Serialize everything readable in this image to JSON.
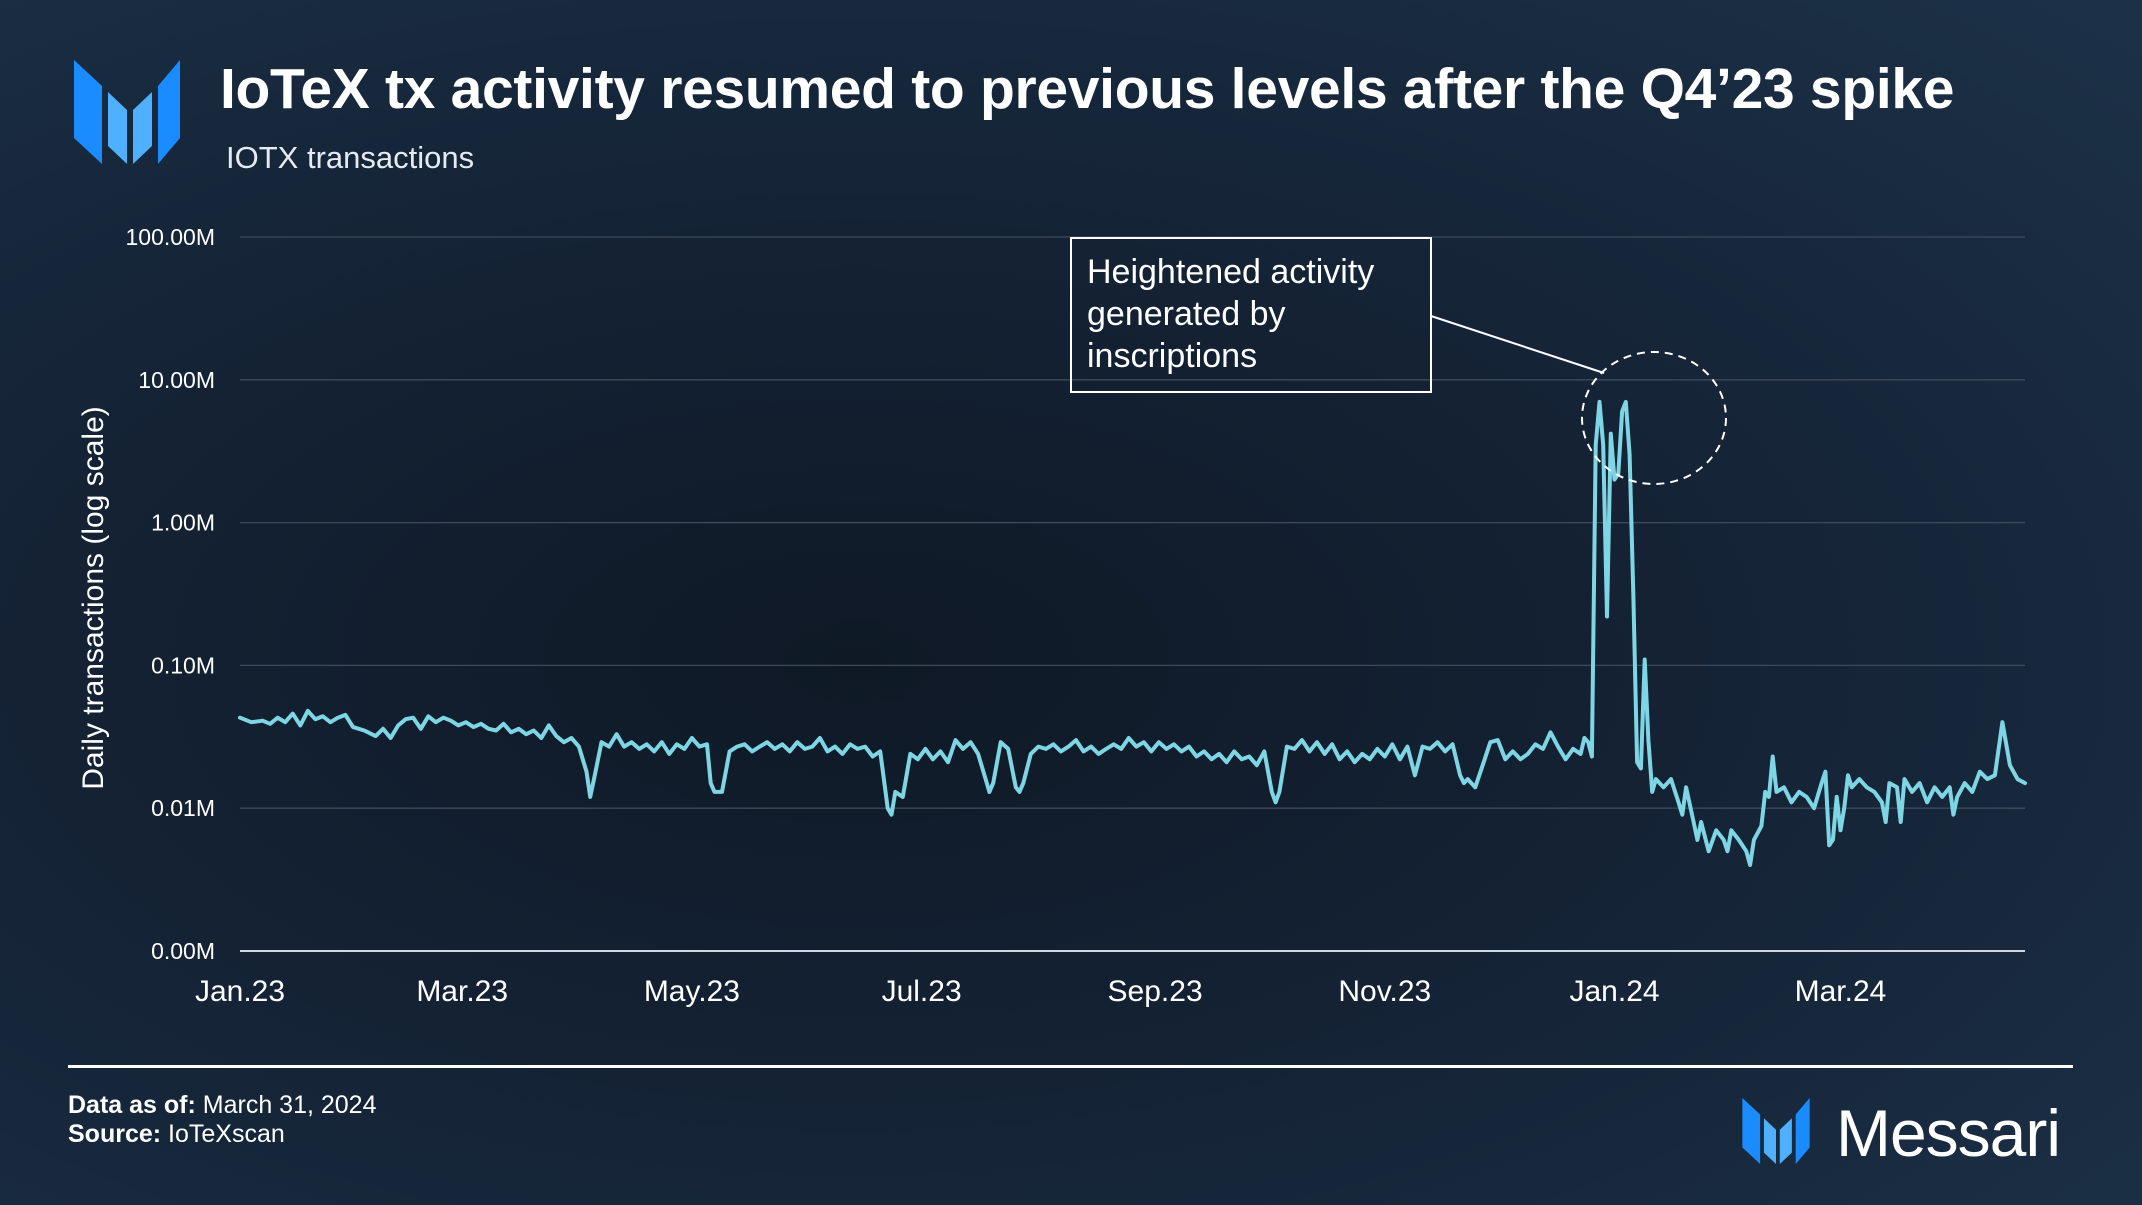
{
  "header": {
    "title": "IoTeX tx activity resumed to previous levels after the Q4’23 spike",
    "subtitle": "IOTX transactions"
  },
  "footer": {
    "data_as_of_label": "Data as of:",
    "data_as_of_value": "March 31, 2024",
    "source_label": "Source:",
    "source_value": "IoTeXscan",
    "brand": "Messari"
  },
  "colors": {
    "line": "#7ed6e4",
    "accent_blue": "#1a8cff",
    "grid": "#3d4a5a"
  },
  "chart_data": {
    "type": "line",
    "title": "IoTeX tx activity resumed to previous levels after the Q4’23 spike",
    "subtitle": "IOTX transactions",
    "ylabel": "Daily transactions (log scale)",
    "xlabel": "",
    "yscale": "log",
    "ylim": [
      0.001,
      100
    ],
    "y_ticks": [
      {
        "value": 100,
        "label": "100.00M"
      },
      {
        "value": 10,
        "label": "10.00M"
      },
      {
        "value": 1,
        "label": "1.00M"
      },
      {
        "value": 0.1,
        "label": "0.10M"
      },
      {
        "value": 0.01,
        "label": "0.01M"
      },
      {
        "value": 0.001,
        "label": "0.00M"
      }
    ],
    "x_start": "2023-01-01",
    "x_end": "2024-03-31",
    "x_ticks": [
      {
        "day": 0,
        "label": "Jan.23"
      },
      {
        "day": 59,
        "label": "Mar.23"
      },
      {
        "day": 120,
        "label": "May.23"
      },
      {
        "day": 181,
        "label": "Jul.23"
      },
      {
        "day": 243,
        "label": "Sep.23"
      },
      {
        "day": 304,
        "label": "Nov.23"
      },
      {
        "day": 365,
        "label": "Jan.24"
      },
      {
        "day": 425,
        "label": "Mar.24"
      }
    ],
    "annotation": {
      "text": [
        "Heightened activity",
        "generated by",
        "inscriptions"
      ],
      "target_day": 362,
      "target_value": 3.0
    },
    "series": [
      {
        "name": "Daily transactions (M)",
        "points": [
          [
            0,
            0.043
          ],
          [
            3,
            0.04
          ],
          [
            6,
            0.041
          ],
          [
            8,
            0.039
          ],
          [
            10,
            0.043
          ],
          [
            12,
            0.04
          ],
          [
            14,
            0.046
          ],
          [
            16,
            0.038
          ],
          [
            18,
            0.048
          ],
          [
            20,
            0.042
          ],
          [
            22,
            0.044
          ],
          [
            24,
            0.04
          ],
          [
            26,
            0.043
          ],
          [
            28,
            0.045
          ],
          [
            30,
            0.037
          ],
          [
            33,
            0.035
          ],
          [
            36,
            0.032
          ],
          [
            38,
            0.036
          ],
          [
            40,
            0.031
          ],
          [
            42,
            0.038
          ],
          [
            44,
            0.042
          ],
          [
            46,
            0.043
          ],
          [
            48,
            0.036
          ],
          [
            50,
            0.044
          ],
          [
            52,
            0.04
          ],
          [
            54,
            0.043
          ],
          [
            56,
            0.041
          ],
          [
            58,
            0.038
          ],
          [
            60,
            0.04
          ],
          [
            62,
            0.037
          ],
          [
            64,
            0.039
          ],
          [
            66,
            0.036
          ],
          [
            68,
            0.035
          ],
          [
            70,
            0.039
          ],
          [
            72,
            0.034
          ],
          [
            74,
            0.036
          ],
          [
            76,
            0.033
          ],
          [
            78,
            0.035
          ],
          [
            80,
            0.031
          ],
          [
            82,
            0.038
          ],
          [
            84,
            0.032
          ],
          [
            86,
            0.029
          ],
          [
            88,
            0.031
          ],
          [
            90,
            0.027
          ],
          [
            92,
            0.018
          ],
          [
            93,
            0.012
          ],
          [
            94,
            0.016
          ],
          [
            96,
            0.029
          ],
          [
            98,
            0.027
          ],
          [
            100,
            0.033
          ],
          [
            102,
            0.027
          ],
          [
            104,
            0.029
          ],
          [
            106,
            0.026
          ],
          [
            108,
            0.028
          ],
          [
            110,
            0.025
          ],
          [
            112,
            0.029
          ],
          [
            114,
            0.024
          ],
          [
            116,
            0.028
          ],
          [
            118,
            0.026
          ],
          [
            120,
            0.031
          ],
          [
            122,
            0.027
          ],
          [
            124,
            0.028
          ],
          [
            125,
            0.015
          ],
          [
            126,
            0.013
          ],
          [
            128,
            0.013
          ],
          [
            130,
            0.025
          ],
          [
            132,
            0.027
          ],
          [
            134,
            0.028
          ],
          [
            136,
            0.025
          ],
          [
            138,
            0.027
          ],
          [
            140,
            0.029
          ],
          [
            142,
            0.026
          ],
          [
            144,
            0.028
          ],
          [
            146,
            0.025
          ],
          [
            148,
            0.029
          ],
          [
            150,
            0.026
          ],
          [
            152,
            0.027
          ],
          [
            154,
            0.031
          ],
          [
            156,
            0.025
          ],
          [
            158,
            0.027
          ],
          [
            160,
            0.024
          ],
          [
            162,
            0.028
          ],
          [
            164,
            0.026
          ],
          [
            166,
            0.027
          ],
          [
            168,
            0.023
          ],
          [
            170,
            0.025
          ],
          [
            172,
            0.01
          ],
          [
            173,
            0.009
          ],
          [
            174,
            0.013
          ],
          [
            176,
            0.012
          ],
          [
            178,
            0.024
          ],
          [
            180,
            0.022
          ],
          [
            182,
            0.026
          ],
          [
            184,
            0.022
          ],
          [
            186,
            0.025
          ],
          [
            188,
            0.021
          ],
          [
            190,
            0.03
          ],
          [
            192,
            0.026
          ],
          [
            194,
            0.029
          ],
          [
            196,
            0.024
          ],
          [
            198,
            0.016
          ],
          [
            199,
            0.013
          ],
          [
            200,
            0.015
          ],
          [
            202,
            0.029
          ],
          [
            204,
            0.026
          ],
          [
            206,
            0.014
          ],
          [
            207,
            0.013
          ],
          [
            208,
            0.015
          ],
          [
            210,
            0.024
          ],
          [
            212,
            0.027
          ],
          [
            214,
            0.026
          ],
          [
            216,
            0.028
          ],
          [
            218,
            0.025
          ],
          [
            220,
            0.027
          ],
          [
            222,
            0.03
          ],
          [
            224,
            0.025
          ],
          [
            226,
            0.027
          ],
          [
            228,
            0.024
          ],
          [
            230,
            0.026
          ],
          [
            232,
            0.028
          ],
          [
            234,
            0.026
          ],
          [
            236,
            0.031
          ],
          [
            238,
            0.027
          ],
          [
            240,
            0.029
          ],
          [
            242,
            0.025
          ],
          [
            244,
            0.029
          ],
          [
            246,
            0.026
          ],
          [
            248,
            0.028
          ],
          [
            250,
            0.025
          ],
          [
            252,
            0.027
          ],
          [
            254,
            0.023
          ],
          [
            256,
            0.025
          ],
          [
            258,
            0.022
          ],
          [
            260,
            0.024
          ],
          [
            262,
            0.021
          ],
          [
            264,
            0.025
          ],
          [
            266,
            0.022
          ],
          [
            268,
            0.023
          ],
          [
            270,
            0.02
          ],
          [
            272,
            0.025
          ],
          [
            274,
            0.013
          ],
          [
            275,
            0.011
          ],
          [
            276,
            0.013
          ],
          [
            278,
            0.027
          ],
          [
            280,
            0.026
          ],
          [
            282,
            0.03
          ],
          [
            284,
            0.025
          ],
          [
            286,
            0.029
          ],
          [
            288,
            0.024
          ],
          [
            290,
            0.028
          ],
          [
            292,
            0.022
          ],
          [
            294,
            0.025
          ],
          [
            296,
            0.021
          ],
          [
            298,
            0.024
          ],
          [
            300,
            0.022
          ],
          [
            302,
            0.026
          ],
          [
            304,
            0.023
          ],
          [
            306,
            0.028
          ],
          [
            308,
            0.022
          ],
          [
            310,
            0.027
          ],
          [
            312,
            0.017
          ],
          [
            314,
            0.027
          ],
          [
            316,
            0.026
          ],
          [
            318,
            0.029
          ],
          [
            320,
            0.025
          ],
          [
            322,
            0.028
          ],
          [
            324,
            0.017
          ],
          [
            325,
            0.015
          ],
          [
            326,
            0.016
          ],
          [
            328,
            0.014
          ],
          [
            330,
            0.02
          ],
          [
            332,
            0.029
          ],
          [
            334,
            0.03
          ],
          [
            336,
            0.022
          ],
          [
            338,
            0.025
          ],
          [
            340,
            0.022
          ],
          [
            342,
            0.024
          ],
          [
            344,
            0.028
          ],
          [
            346,
            0.026
          ],
          [
            348,
            0.034
          ],
          [
            350,
            0.027
          ],
          [
            352,
            0.022
          ],
          [
            354,
            0.026
          ],
          [
            356,
            0.024
          ],
          [
            357,
            0.031
          ],
          [
            358,
            0.029
          ],
          [
            359,
            0.023
          ],
          [
            360,
            3.5
          ],
          [
            361,
            7.0
          ],
          [
            362,
            3.5
          ],
          [
            363,
            0.22
          ],
          [
            364,
            4.2
          ],
          [
            365,
            2.0
          ],
          [
            366,
            2.2
          ],
          [
            367,
            6.0
          ],
          [
            368,
            7.0
          ],
          [
            369,
            3.0
          ],
          [
            370,
            0.3
          ],
          [
            371,
            0.021
          ],
          [
            372,
            0.019
          ],
          [
            373,
            0.11
          ],
          [
            374,
            0.03
          ],
          [
            375,
            0.013
          ],
          [
            376,
            0.016
          ],
          [
            378,
            0.014
          ],
          [
            380,
            0.016
          ],
          [
            382,
            0.011
          ],
          [
            383,
            0.009
          ],
          [
            384,
            0.014
          ],
          [
            386,
            0.008
          ],
          [
            387,
            0.006
          ],
          [
            388,
            0.008
          ],
          [
            390,
            0.005
          ],
          [
            392,
            0.007
          ],
          [
            394,
            0.006
          ],
          [
            395,
            0.005
          ],
          [
            396,
            0.007
          ],
          [
            398,
            0.006
          ],
          [
            400,
            0.005
          ],
          [
            401,
            0.004
          ],
          [
            402,
            0.006
          ],
          [
            404,
            0.0075
          ],
          [
            405,
            0.013
          ],
          [
            406,
            0.012
          ],
          [
            407,
            0.023
          ],
          [
            408,
            0.013
          ],
          [
            410,
            0.014
          ],
          [
            412,
            0.011
          ],
          [
            414,
            0.013
          ],
          [
            416,
            0.012
          ],
          [
            418,
            0.01
          ],
          [
            420,
            0.015
          ],
          [
            421,
            0.018
          ],
          [
            422,
            0.0055
          ],
          [
            423,
            0.006
          ],
          [
            424,
            0.012
          ],
          [
            425,
            0.007
          ],
          [
            426,
            0.01
          ],
          [
            427,
            0.017
          ],
          [
            428,
            0.014
          ],
          [
            430,
            0.016
          ],
          [
            432,
            0.014
          ],
          [
            434,
            0.013
          ],
          [
            436,
            0.011
          ],
          [
            437,
            0.008
          ],
          [
            438,
            0.015
          ],
          [
            440,
            0.014
          ],
          [
            441,
            0.008
          ],
          [
            442,
            0.016
          ],
          [
            444,
            0.013
          ],
          [
            446,
            0.015
          ],
          [
            448,
            0.011
          ],
          [
            450,
            0.014
          ],
          [
            452,
            0.012
          ],
          [
            454,
            0.014
          ],
          [
            455,
            0.009
          ],
          [
            456,
            0.012
          ],
          [
            458,
            0.015
          ],
          [
            460,
            0.013
          ],
          [
            462,
            0.018
          ],
          [
            464,
            0.016
          ],
          [
            466,
            0.017
          ],
          [
            468,
            0.04
          ],
          [
            470,
            0.02
          ],
          [
            472,
            0.016
          ],
          [
            474,
            0.015
          ]
        ]
      }
    ]
  }
}
